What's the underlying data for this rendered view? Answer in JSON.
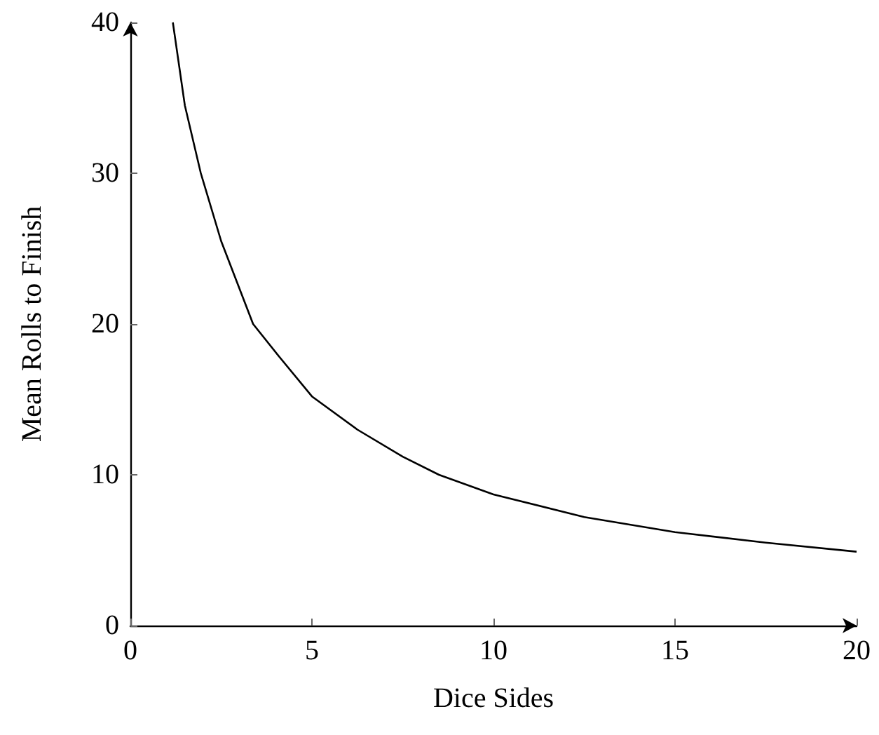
{
  "chart_data": {
    "type": "line",
    "xlabel": "Dice Sides",
    "ylabel": "Mean Rolls to Finish",
    "x": [
      1.17,
      1.5,
      1.94,
      2.5,
      3.38,
      4.11,
      5,
      6.25,
      7.5,
      8.5,
      10,
      12.5,
      15,
      17.5,
      20
    ],
    "series": [
      {
        "color": "#000000",
        "values": [
          40,
          34.5,
          30,
          25.5,
          20,
          17.8,
          15.2,
          13,
          11.2,
          10,
          8.7,
          7.2,
          6.2,
          5.5,
          4.9
        ]
      }
    ],
    "xlim": [
      0,
      20
    ],
    "xticks": [
      0,
      5,
      10,
      15,
      20
    ],
    "ylim": [
      0,
      40
    ],
    "yticks": [
      0,
      10,
      20,
      30,
      40
    ],
    "grid": false,
    "marker": "none",
    "line_style": "solid"
  }
}
